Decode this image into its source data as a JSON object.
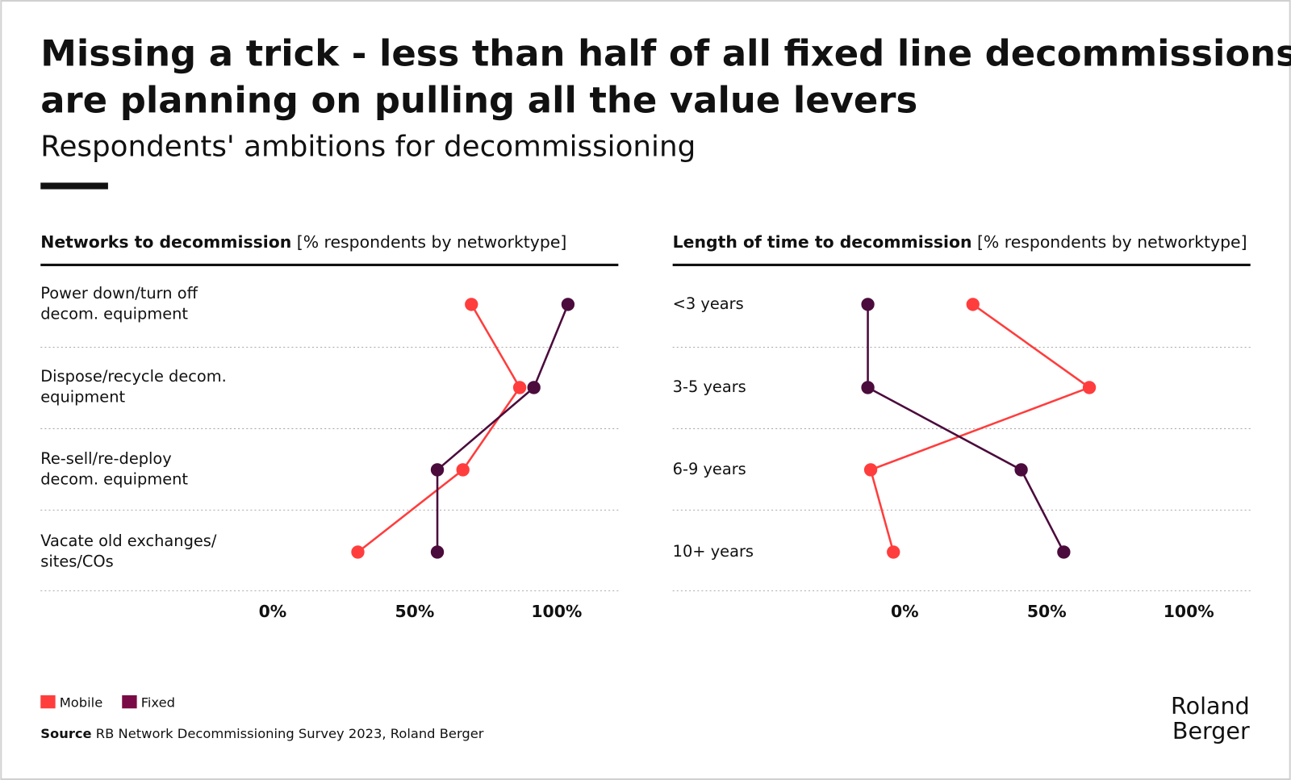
{
  "title": [
    "Missing a trick - less than half of all fixed line decommissions",
    "are planning on pulling all the value levers"
  ],
  "subtitle": "Respondents' ambitions for decommissioning",
  "chart_data": [
    {
      "type": "dot-plot",
      "axis_label_bold": "Networks to decommission",
      "axis_label": "[% respondents by networktype]",
      "categories": [
        [
          "Power down/turn off",
          "decom. equipment"
        ],
        [
          "Dispose/recycle decom.",
          "equipment"
        ],
        [
          "Re-sell/re-deploy",
          "decom. equipment"
        ],
        [
          "Vacate old exchanges/",
          "sites/COs"
        ]
      ],
      "series": [
        {
          "name": "Mobile",
          "color": "#ff3d3d",
          "values": [
            70,
            87,
            67,
            30
          ]
        },
        {
          "name": "Fixed",
          "color": "#4b0b3c",
          "values": [
            104,
            92,
            58,
            58
          ]
        }
      ],
      "xlim": [
        -20,
        120
      ],
      "xticks": [
        {
          "value": 0,
          "label": "0%"
        },
        {
          "value": 50,
          "label": "50%"
        },
        {
          "value": 100,
          "label": "100%"
        }
      ]
    },
    {
      "type": "dot-plot",
      "axis_label_bold": "Length of time to decommission",
      "axis_label": "[% respondents by networktype]",
      "categories": [
        [
          "<3 years"
        ],
        [
          "3-5 years"
        ],
        [
          "6-9 years"
        ],
        [
          "10+ years"
        ]
      ],
      "series": [
        {
          "name": "Mobile",
          "color": "#ff3d3d",
          "values": [
            24,
            65,
            -12,
            -4
          ]
        },
        {
          "name": "Fixed",
          "color": "#4b0b3c",
          "values": [
            -13,
            -13,
            41,
            56
          ]
        }
      ],
      "xlim": [
        -20,
        120
      ],
      "xticks": [
        {
          "value": 0,
          "label": "0%"
        },
        {
          "value": 50,
          "label": "50%"
        },
        {
          "value": 100,
          "label": "100%"
        }
      ]
    }
  ],
  "source_bold": "Source",
  "source": "RB Network Decommissioning Survey 2023, Roland Berger",
  "logo": [
    "Roland",
    "Berger"
  ]
}
